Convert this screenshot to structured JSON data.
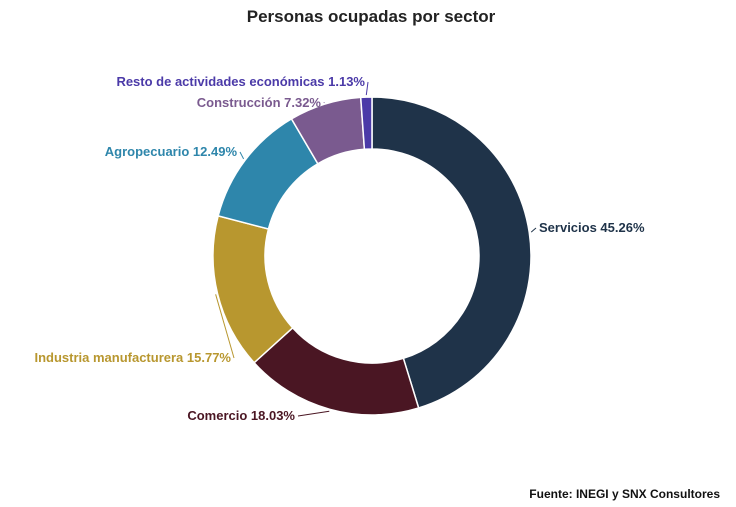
{
  "chart_data": {
    "type": "pie",
    "title": "Personas ocupadas por sector",
    "donut": true,
    "categories": [
      "Servicios",
      "Comercio",
      "Industria manufacturera",
      "Agropecuario",
      "Construcción",
      "Resto de actividades económicas"
    ],
    "values": [
      45.26,
      18.03,
      15.77,
      12.49,
      7.32,
      1.13
    ],
    "labels": [
      "Servicios 45.26%",
      "Comercio 18.03%",
      "Industria manufacturera 15.77%",
      "Agropecuario 12.49%",
      "Construcción 7.32%",
      "Resto de actividades económicas 1.13%"
    ],
    "colors": [
      "#1f3349",
      "#4a1623",
      "#b8972f",
      "#2e86ab",
      "#7a5a8f",
      "#4b3aa8"
    ],
    "legend": "none"
  },
  "source": "Fuente: INEGI y SNX Consultores"
}
